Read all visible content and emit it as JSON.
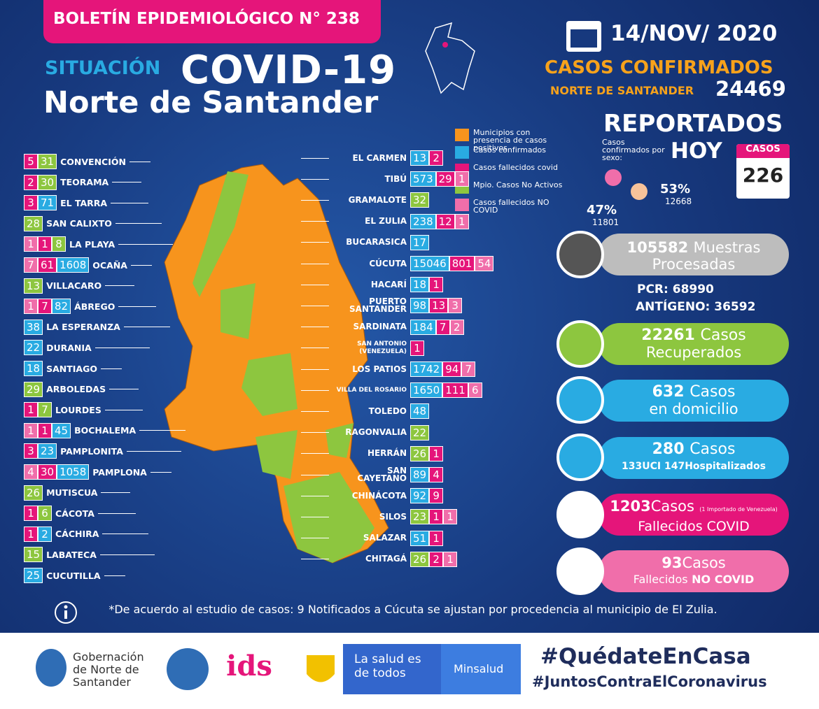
{
  "header": {
    "bulletin": "BOLETÍN EPIDEMIOLÓGICO N° 238",
    "situation": "SITUACIÓN",
    "title": "COVID-19",
    "region": "Norte de Santander"
  },
  "summary": {
    "date": "14/NOV/ 2020",
    "confirmed_label": "CASOS CONFIRMADOS",
    "confirmed_region": "NORTE DE SANTANDER",
    "confirmed_total": 24469,
    "reported": "REPORTADOS",
    "today": "HOY",
    "by_sex": "Casos confirmados por sexo:",
    "cases_label": "CASOS",
    "cases_today": 226,
    "female_pct": "47%",
    "female_count": 11801,
    "male_pct": "53%",
    "male_count": 12668
  },
  "legend": [
    {
      "label": "Municipios con presencia de casos positivos",
      "color": "#f7941d"
    },
    {
      "label": "Casos confirmados",
      "color": "#29abe2"
    },
    {
      "label": "Casos fallecidos covid",
      "color": "#e5157a"
    },
    {
      "label": "Mpio. Casos No Activos",
      "color": "#8dc63f"
    },
    {
      "label": "Casos fallecidos NO COVID",
      "color": "#f06eaa"
    }
  ],
  "left_municipalities": [
    {
      "name": "CONVENCIÓN",
      "boxes": [
        {
          "value": 5,
          "color": "#e5157a"
        },
        {
          "value": 31,
          "color": "#8dc63f"
        }
      ]
    },
    {
      "name": "TEORAMA",
      "boxes": [
        {
          "value": 2,
          "color": "#e5157a"
        },
        {
          "value": 30,
          "color": "#8dc63f"
        }
      ]
    },
    {
      "name": "EL TARRA",
      "boxes": [
        {
          "value": 3,
          "color": "#e5157a"
        },
        {
          "value": 71,
          "color": "#29abe2"
        }
      ]
    },
    {
      "name": "SAN CALIXTO",
      "boxes": [
        {
          "value": 28,
          "color": "#8dc63f"
        }
      ]
    },
    {
      "name": "LA PLAYA",
      "boxes": [
        {
          "value": 1,
          "color": "#f06eaa"
        },
        {
          "value": 1,
          "color": "#e5157a"
        },
        {
          "value": 8,
          "color": "#8dc63f"
        }
      ]
    },
    {
      "name": "OCAÑA",
      "boxes": [
        {
          "value": 7,
          "color": "#f06eaa"
        },
        {
          "value": 61,
          "color": "#e5157a"
        },
        {
          "value": 1608,
          "color": "#29abe2"
        }
      ]
    },
    {
      "name": "VILLACARO",
      "boxes": [
        {
          "value": 13,
          "color": "#8dc63f"
        }
      ]
    },
    {
      "name": "ÁBREGO",
      "boxes": [
        {
          "value": 1,
          "color": "#f06eaa"
        },
        {
          "value": 7,
          "color": "#e5157a"
        },
        {
          "value": 82,
          "color": "#29abe2"
        }
      ]
    },
    {
      "name": "LA ESPERANZA",
      "boxes": [
        {
          "value": 38,
          "color": "#29abe2"
        }
      ]
    },
    {
      "name": "DURANIA",
      "boxes": [
        {
          "value": 22,
          "color": "#29abe2"
        }
      ]
    },
    {
      "name": "SANTIAGO",
      "boxes": [
        {
          "value": 18,
          "color": "#29abe2"
        }
      ]
    },
    {
      "name": "ARBOLEDAS",
      "boxes": [
        {
          "value": 29,
          "color": "#8dc63f"
        }
      ]
    },
    {
      "name": "LOURDES",
      "boxes": [
        {
          "value": 1,
          "color": "#e5157a"
        },
        {
          "value": 7,
          "color": "#8dc63f"
        }
      ]
    },
    {
      "name": "BOCHALEMA",
      "boxes": [
        {
          "value": 1,
          "color": "#f06eaa"
        },
        {
          "value": 1,
          "color": "#e5157a"
        },
        {
          "value": 45,
          "color": "#29abe2"
        }
      ]
    },
    {
      "name": "PAMPLONITA",
      "boxes": [
        {
          "value": 3,
          "color": "#e5157a"
        },
        {
          "value": 23,
          "color": "#29abe2"
        }
      ]
    },
    {
      "name": "PAMPLONA",
      "boxes": [
        {
          "value": 4,
          "color": "#f06eaa"
        },
        {
          "value": 30,
          "color": "#e5157a"
        },
        {
          "value": 1058,
          "color": "#29abe2"
        }
      ]
    },
    {
      "name": "MUTISCUA",
      "boxes": [
        {
          "value": 26,
          "color": "#8dc63f"
        }
      ]
    },
    {
      "name": "CÁCOTA",
      "boxes": [
        {
          "value": 1,
          "color": "#e5157a"
        },
        {
          "value": 6,
          "color": "#8dc63f"
        }
      ]
    },
    {
      "name": "CÁCHIRA",
      "boxes": [
        {
          "value": 1,
          "color": "#e5157a"
        },
        {
          "value": 2,
          "color": "#29abe2"
        }
      ]
    },
    {
      "name": "LABATECA",
      "boxes": [
        {
          "value": 15,
          "color": "#8dc63f"
        }
      ]
    },
    {
      "name": "CUCUTILLA",
      "boxes": [
        {
          "value": 25,
          "color": "#29abe2"
        }
      ]
    }
  ],
  "right_municipalities": [
    {
      "name": "EL CARMEN",
      "boxes": [
        {
          "value": 13,
          "color": "#29abe2"
        },
        {
          "value": 2,
          "color": "#e5157a"
        }
      ]
    },
    {
      "name": "TIBÚ",
      "boxes": [
        {
          "value": 573,
          "color": "#29abe2"
        },
        {
          "value": 29,
          "color": "#e5157a"
        },
        {
          "value": 1,
          "color": "#f06eaa"
        }
      ]
    },
    {
      "name": "GRAMALOTE",
      "boxes": [
        {
          "value": 32,
          "color": "#8dc63f"
        }
      ]
    },
    {
      "name": "EL ZULIA",
      "boxes": [
        {
          "value": 238,
          "color": "#29abe2"
        },
        {
          "value": 12,
          "color": "#e5157a"
        },
        {
          "value": 1,
          "color": "#f06eaa"
        }
      ]
    },
    {
      "name": "BUCARASICA",
      "boxes": [
        {
          "value": 17,
          "color": "#29abe2"
        }
      ]
    },
    {
      "name": "CÚCUTA",
      "boxes": [
        {
          "value": 15046,
          "color": "#29abe2"
        },
        {
          "value": 801,
          "color": "#e5157a"
        },
        {
          "value": 54,
          "color": "#f06eaa"
        }
      ]
    },
    {
      "name": "HACARÍ",
      "boxes": [
        {
          "value": 18,
          "color": "#29abe2"
        },
        {
          "value": 1,
          "color": "#e5157a"
        }
      ]
    },
    {
      "name": "PUERTO SANTANDER",
      "boxes": [
        {
          "value": 98,
          "color": "#29abe2"
        },
        {
          "value": 13,
          "color": "#e5157a"
        },
        {
          "value": 3,
          "color": "#f06eaa"
        }
      ]
    },
    {
      "name": "SARDINATA",
      "boxes": [
        {
          "value": 184,
          "color": "#29abe2"
        },
        {
          "value": 7,
          "color": "#e5157a"
        },
        {
          "value": 2,
          "color": "#f06eaa"
        }
      ]
    },
    {
      "name": "SAN ANTONIO (VENEZUELA)",
      "boxes": [
        {
          "value": 1,
          "color": "#e5157a"
        }
      ]
    },
    {
      "name": "LOS PATIOS",
      "boxes": [
        {
          "value": 1742,
          "color": "#29abe2"
        },
        {
          "value": 94,
          "color": "#e5157a"
        },
        {
          "value": 7,
          "color": "#f06eaa"
        }
      ]
    },
    {
      "name": "VILLA DEL ROSARIO",
      "boxes": [
        {
          "value": 1650,
          "color": "#29abe2"
        },
        {
          "value": 111,
          "color": "#e5157a"
        },
        {
          "value": 6,
          "color": "#f06eaa"
        }
      ]
    },
    {
      "name": "TOLEDO",
      "boxes": [
        {
          "value": 48,
          "color": "#29abe2"
        }
      ]
    },
    {
      "name": "RAGONVALIA",
      "boxes": [
        {
          "value": 22,
          "color": "#8dc63f"
        }
      ]
    },
    {
      "name": "HERRÁN",
      "boxes": [
        {
          "value": 26,
          "color": "#8dc63f"
        },
        {
          "value": 1,
          "color": "#e5157a"
        }
      ]
    },
    {
      "name": "SAN CAYETANO",
      "boxes": [
        {
          "value": 89,
          "color": "#29abe2"
        },
        {
          "value": 4,
          "color": "#e5157a"
        }
      ]
    },
    {
      "name": "CHINÁCOTA",
      "boxes": [
        {
          "value": 92,
          "color": "#29abe2"
        },
        {
          "value": 9,
          "color": "#e5157a"
        }
      ]
    },
    {
      "name": "SILOS",
      "boxes": [
        {
          "value": 23,
          "color": "#8dc63f"
        },
        {
          "value": 1,
          "color": "#e5157a"
        },
        {
          "value": 1,
          "color": "#f06eaa"
        }
      ]
    },
    {
      "name": "SALAZAR",
      "boxes": [
        {
          "value": 51,
          "color": "#29abe2"
        },
        {
          "value": 1,
          "color": "#e5157a"
        }
      ]
    },
    {
      "name": "CHITAGÁ",
      "boxes": [
        {
          "value": 26,
          "color": "#8dc63f"
        },
        {
          "value": 2,
          "color": "#e5157a"
        },
        {
          "value": 1,
          "color": "#f06eaa"
        }
      ]
    }
  ],
  "stats": {
    "samples": 105582,
    "samples_label": "Muestras Procesadas",
    "pcr": "PCR: 68990",
    "antigen": "ANTÍGENO: 36592",
    "recovered": 22261,
    "recovered_label1": "Casos",
    "recovered_label2": "Recuperados",
    "home": 632,
    "home_label1": "Casos",
    "home_label2": "en domicilio",
    "hospital": 280,
    "hospital_label": "Casos",
    "icu": 133,
    "icu_label": "UCI",
    "hospitalized": 147,
    "hospitalized_label": "Hospitalizados",
    "deaths": 1203,
    "deaths_label": "Casos",
    "deaths_note": "(1 Importado de Venezuela)",
    "deaths_label2": "Fallecidos COVID",
    "non_covid": 93,
    "non_covid_label": "Casos",
    "non_covid_label2": "Fallecidos",
    "non_covid_label3": "NO COVID"
  },
  "footnote": "*De acuerdo al estudio de casos: 9 Notificados a Cúcuta se ajustan por procedencia al municipio de El Zulia.",
  "footer": {
    "gov": "Gobernación de Norte de Santander",
    "health": "La salud es de todos",
    "ministry": "Minsalud",
    "tag1": "#QuédateEnCasa",
    "tag2": "#JuntosContraElCoronavirus"
  }
}
